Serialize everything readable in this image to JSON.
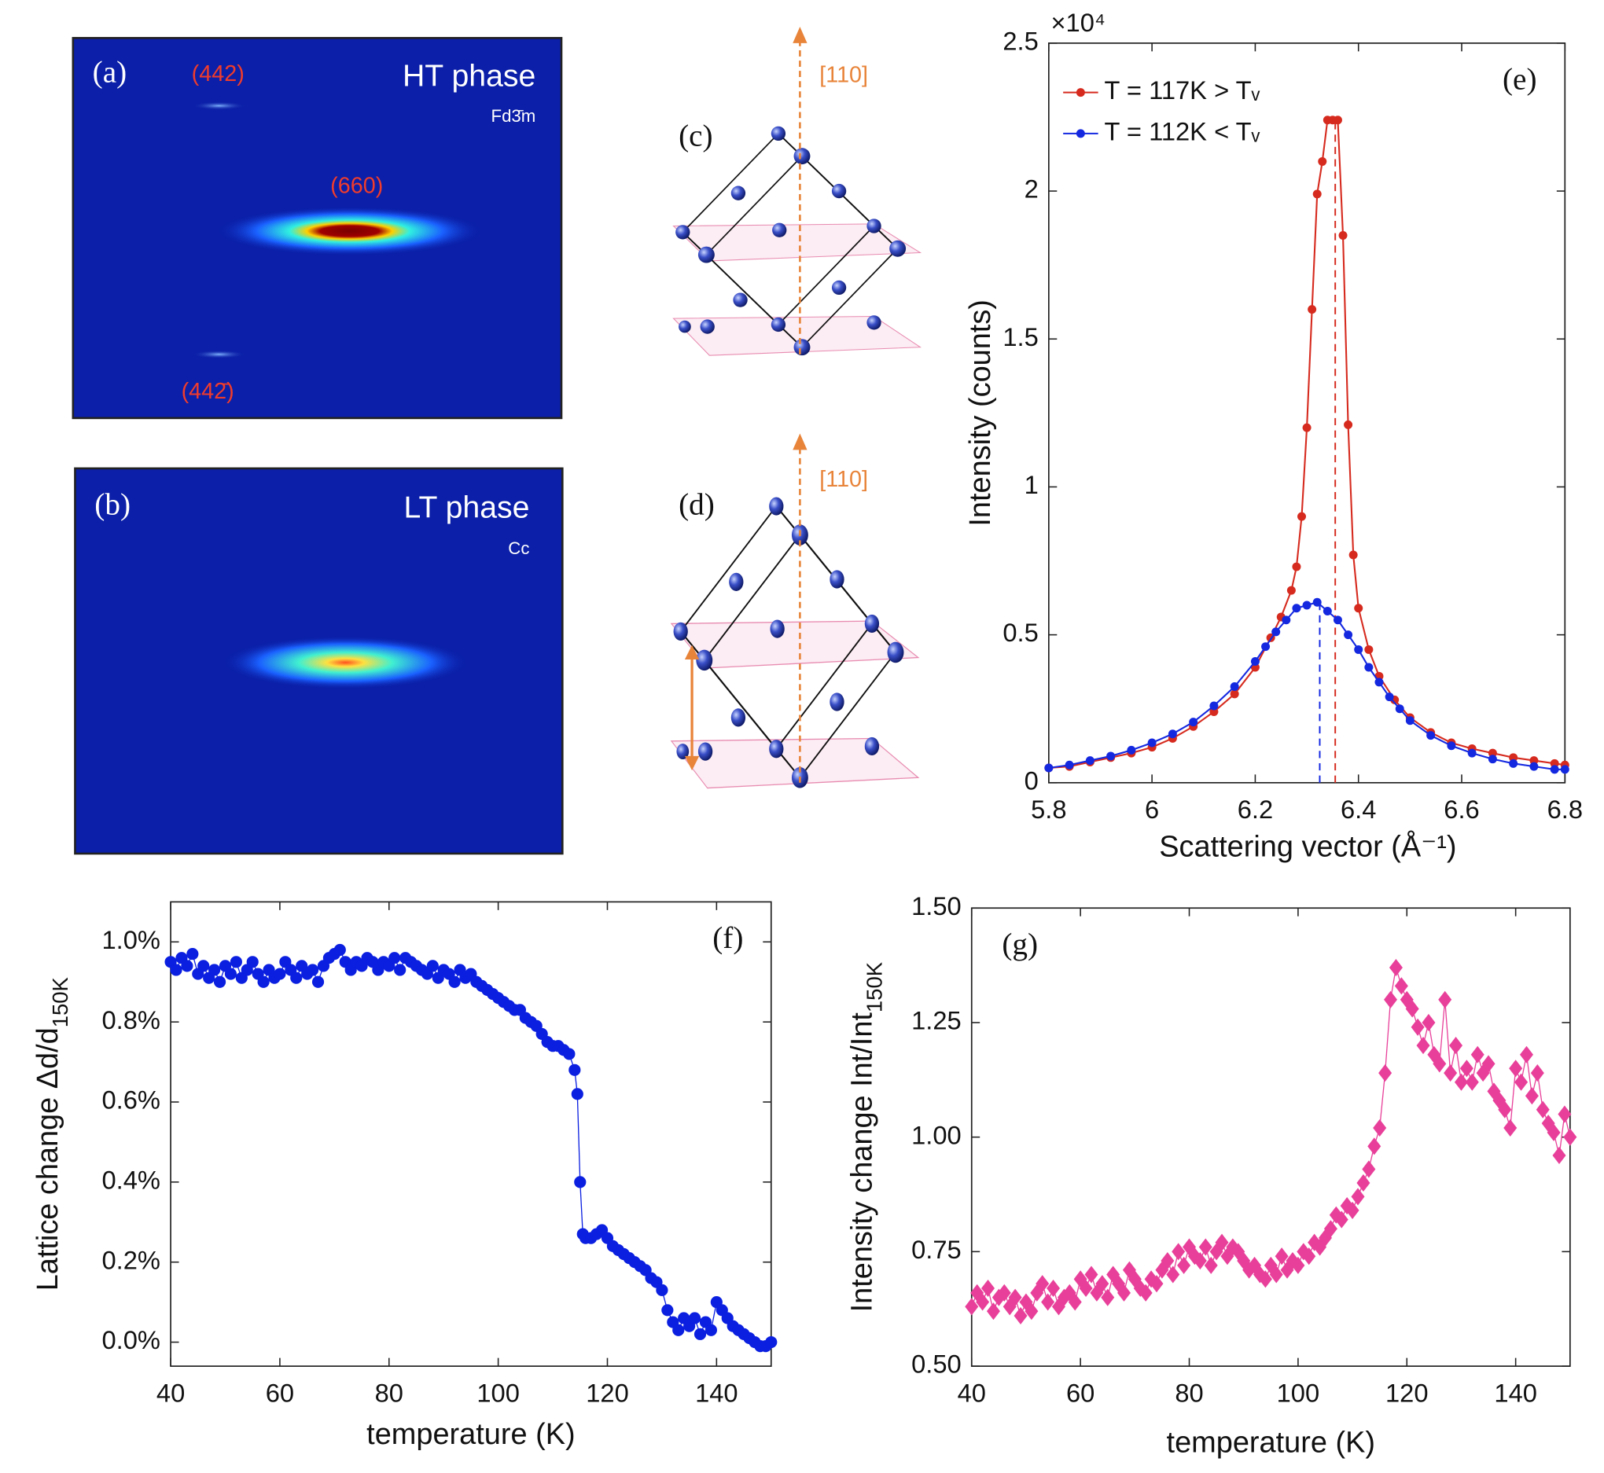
{
  "panels": {
    "a": {
      "label": "(a)",
      "phase": "HT phase",
      "space_group": "Fd3̄m",
      "reflections": [
        "(442)",
        "(660)",
        "(442̄)"
      ]
    },
    "b": {
      "label": "(b)",
      "phase": "LT phase",
      "space_group": "Cc"
    },
    "c": {
      "label": "(c)",
      "direction": "[110]"
    },
    "d": {
      "label": "(d)",
      "direction": "[110]"
    }
  },
  "chart_data": [
    {
      "type": "line",
      "panel_label": "(e)",
      "xlabel": "Scattering vector (Å⁻¹)",
      "ylabel": "Intensity (counts)",
      "y_multiplier": "×10⁴",
      "xlim": [
        5.8,
        6.8
      ],
      "ylim": [
        0,
        25000
      ],
      "xticks": [
        5.8,
        6,
        6.2,
        6.4,
        6.6,
        6.8
      ],
      "yticks": [
        0,
        {
          "value": 5000,
          "label": "0.5"
        },
        {
          "value": 10000,
          "label": "1"
        },
        {
          "value": 15000,
          "label": "1.5"
        },
        {
          "value": 20000,
          "label": "2"
        },
        {
          "value": 25000,
          "label": "2.5"
        }
      ],
      "grid": false,
      "marker": "circle",
      "legend": "upper left",
      "series": [
        {
          "name": "T = 117K > Tᵥ",
          "color": "#d62a1e",
          "peak_x": 6.355,
          "x": [
            5.8,
            5.84,
            5.88,
            5.92,
            5.96,
            6.0,
            6.04,
            6.08,
            6.12,
            6.16,
            6.2,
            6.23,
            6.25,
            6.27,
            6.28,
            6.29,
            6.3,
            6.31,
            6.32,
            6.33,
            6.34,
            6.35,
            6.36,
            6.37,
            6.38,
            6.39,
            6.4,
            6.42,
            6.44,
            6.47,
            6.5,
            6.54,
            6.58,
            6.62,
            6.66,
            6.7,
            6.74,
            6.78,
            6.8
          ],
          "values": [
            500,
            550,
            700,
            850,
            1000,
            1200,
            1500,
            1900,
            2400,
            3000,
            3900,
            4900,
            5600,
            6500,
            7300,
            9000,
            12000,
            16000,
            19900,
            21000,
            22400,
            22400,
            22400,
            18500,
            12100,
            7700,
            5900,
            4500,
            3600,
            2800,
            2200,
            1700,
            1350,
            1150,
            1000,
            850,
            750,
            650,
            600
          ]
        },
        {
          "name": "T = 112K < Tᵥ",
          "color": "#1428e0",
          "peak_x": 6.325,
          "x": [
            5.8,
            5.84,
            5.88,
            5.92,
            5.96,
            6.0,
            6.04,
            6.08,
            6.12,
            6.16,
            6.2,
            6.22,
            6.24,
            6.26,
            6.28,
            6.3,
            6.32,
            6.34,
            6.36,
            6.38,
            6.4,
            6.42,
            6.44,
            6.46,
            6.48,
            6.5,
            6.54,
            6.58,
            6.62,
            6.66,
            6.7,
            6.74,
            6.78,
            6.8
          ],
          "values": [
            500,
            600,
            750,
            900,
            1100,
            1350,
            1650,
            2050,
            2600,
            3250,
            4100,
            4600,
            5100,
            5500,
            5900,
            6000,
            6100,
            5800,
            5500,
            5000,
            4500,
            3900,
            3400,
            2900,
            2500,
            2100,
            1600,
            1250,
            1000,
            800,
            650,
            550,
            450,
            450
          ]
        }
      ]
    },
    {
      "type": "line",
      "panel_label": "(f)",
      "xlabel": "temperature (K)",
      "ylabel": "Lattice change Δd/d",
      "ylabel_subscript": "150K",
      "xlim": [
        40,
        150
      ],
      "ylim": [
        -0.06,
        1.1
      ],
      "xticks": [
        40,
        60,
        80,
        100,
        120,
        140
      ],
      "yticks": [
        {
          "value": 0,
          "label": "0.0%"
        },
        {
          "value": 0.2,
          "label": "0.2%"
        },
        {
          "value": 0.4,
          "label": "0.4%"
        },
        {
          "value": 0.6,
          "label": "0.6%"
        },
        {
          "value": 0.8,
          "label": "0.8%"
        },
        {
          "value": 1.0,
          "label": "1.0%"
        }
      ],
      "grid": false,
      "marker": "circle",
      "x": [
        40,
        41,
        42,
        43,
        44,
        45,
        46,
        47,
        48,
        49,
        50,
        51,
        52,
        53,
        54,
        55,
        56,
        57,
        58,
        59,
        60,
        61,
        62,
        63,
        64,
        65,
        66,
        67,
        68,
        69,
        70,
        71,
        72,
        73,
        74,
        75,
        76,
        77,
        78,
        79,
        80,
        81,
        82,
        83,
        84,
        85,
        86,
        87,
        88,
        89,
        90,
        91,
        92,
        93,
        94,
        95,
        96,
        97,
        98,
        99,
        100,
        101,
        102,
        103,
        104,
        105,
        106,
        107,
        108,
        109,
        110,
        111,
        112,
        113,
        114,
        114.5,
        115,
        115.5,
        116,
        117,
        118,
        119,
        120,
        121,
        122,
        123,
        124,
        125,
        126,
        127,
        128,
        129,
        130,
        131,
        132,
        133,
        134,
        135,
        136,
        137,
        138,
        139,
        140,
        141,
        142,
        143,
        144,
        145,
        146,
        147,
        148,
        149,
        150
      ],
      "series": [
        {
          "color": "#0a1fe0",
          "values": [
            0.95,
            0.93,
            0.96,
            0.94,
            0.97,
            0.92,
            0.94,
            0.91,
            0.93,
            0.9,
            0.94,
            0.92,
            0.95,
            0.91,
            0.93,
            0.95,
            0.92,
            0.9,
            0.93,
            0.91,
            0.92,
            0.95,
            0.93,
            0.91,
            0.94,
            0.92,
            0.93,
            0.9,
            0.94,
            0.96,
            0.97,
            0.98,
            0.95,
            0.93,
            0.95,
            0.94,
            0.96,
            0.95,
            0.93,
            0.95,
            0.94,
            0.96,
            0.93,
            0.96,
            0.95,
            0.94,
            0.93,
            0.92,
            0.94,
            0.91,
            0.93,
            0.92,
            0.9,
            0.93,
            0.91,
            0.92,
            0.9,
            0.89,
            0.88,
            0.87,
            0.86,
            0.85,
            0.84,
            0.83,
            0.83,
            0.81,
            0.8,
            0.79,
            0.77,
            0.75,
            0.74,
            0.74,
            0.73,
            0.72,
            0.68,
            0.62,
            0.4,
            0.27,
            0.26,
            0.26,
            0.27,
            0.28,
            0.26,
            0.24,
            0.23,
            0.22,
            0.21,
            0.2,
            0.19,
            0.18,
            0.16,
            0.15,
            0.13,
            0.08,
            0.05,
            0.03,
            0.06,
            0.04,
            0.06,
            0.02,
            0.05,
            0.03,
            0.1,
            0.08,
            0.06,
            0.04,
            0.03,
            0.02,
            0.01,
            0.0,
            -0.01,
            -0.01,
            0.0
          ]
        }
      ]
    },
    {
      "type": "line",
      "panel_label": "(g)",
      "xlabel": "temperature (K)",
      "ylabel": "Intensity change Int/Int",
      "ylabel_subscript": "150K",
      "xlim": [
        40,
        150
      ],
      "ylim": [
        0.5,
        1.5
      ],
      "xticks": [
        40,
        60,
        80,
        100,
        120,
        140
      ],
      "yticks": [
        {
          "value": 0.5,
          "label": "0.50"
        },
        {
          "value": 0.75,
          "label": "0.75"
        },
        {
          "value": 1,
          "label": "1.00"
        },
        {
          "value": 1.25,
          "label": "1.25"
        },
        {
          "value": 1.5,
          "label": "1.50"
        }
      ],
      "grid": false,
      "marker": "diamond",
      "x": [
        40,
        41,
        42,
        43,
        44,
        45,
        46,
        47,
        48,
        49,
        50,
        51,
        52,
        53,
        54,
        55,
        56,
        57,
        58,
        59,
        60,
        61,
        62,
        63,
        64,
        65,
        66,
        67,
        68,
        69,
        70,
        71,
        72,
        73,
        74,
        75,
        76,
        77,
        78,
        79,
        80,
        81,
        82,
        83,
        84,
        85,
        86,
        87,
        88,
        89,
        90,
        91,
        92,
        93,
        94,
        95,
        96,
        97,
        98,
        99,
        100,
        101,
        102,
        103,
        104,
        105,
        106,
        107,
        108,
        109,
        110,
        111,
        112,
        113,
        114,
        115,
        116,
        117,
        118,
        119,
        120,
        121,
        122,
        123,
        124,
        125,
        126,
        127,
        128,
        129,
        130,
        131,
        132,
        133,
        134,
        135,
        136,
        137,
        138,
        139,
        140,
        141,
        142,
        143,
        144,
        145,
        146,
        147,
        148,
        149,
        150
      ],
      "series": [
        {
          "color": "#e8409a",
          "values": [
            0.63,
            0.66,
            0.64,
            0.67,
            0.62,
            0.65,
            0.66,
            0.63,
            0.65,
            0.61,
            0.64,
            0.62,
            0.66,
            0.68,
            0.64,
            0.67,
            0.63,
            0.65,
            0.66,
            0.64,
            0.69,
            0.67,
            0.7,
            0.66,
            0.68,
            0.65,
            0.7,
            0.68,
            0.66,
            0.71,
            0.69,
            0.67,
            0.66,
            0.69,
            0.68,
            0.71,
            0.73,
            0.7,
            0.75,
            0.72,
            0.76,
            0.74,
            0.73,
            0.76,
            0.72,
            0.75,
            0.77,
            0.74,
            0.76,
            0.75,
            0.73,
            0.71,
            0.72,
            0.7,
            0.69,
            0.72,
            0.7,
            0.74,
            0.71,
            0.73,
            0.72,
            0.75,
            0.74,
            0.77,
            0.76,
            0.78,
            0.8,
            0.83,
            0.82,
            0.85,
            0.84,
            0.87,
            0.9,
            0.93,
            0.98,
            1.02,
            1.14,
            1.3,
            1.37,
            1.33,
            1.3,
            1.28,
            1.24,
            1.2,
            1.25,
            1.18,
            1.16,
            1.3,
            1.14,
            1.2,
            1.12,
            1.15,
            1.12,
            1.18,
            1.14,
            1.16,
            1.1,
            1.08,
            1.06,
            1.02,
            1.15,
            1.12,
            1.18,
            1.09,
            1.14,
            1.06,
            1.03,
            1.01,
            0.96,
            1.05,
            1.0
          ]
        }
      ]
    }
  ]
}
